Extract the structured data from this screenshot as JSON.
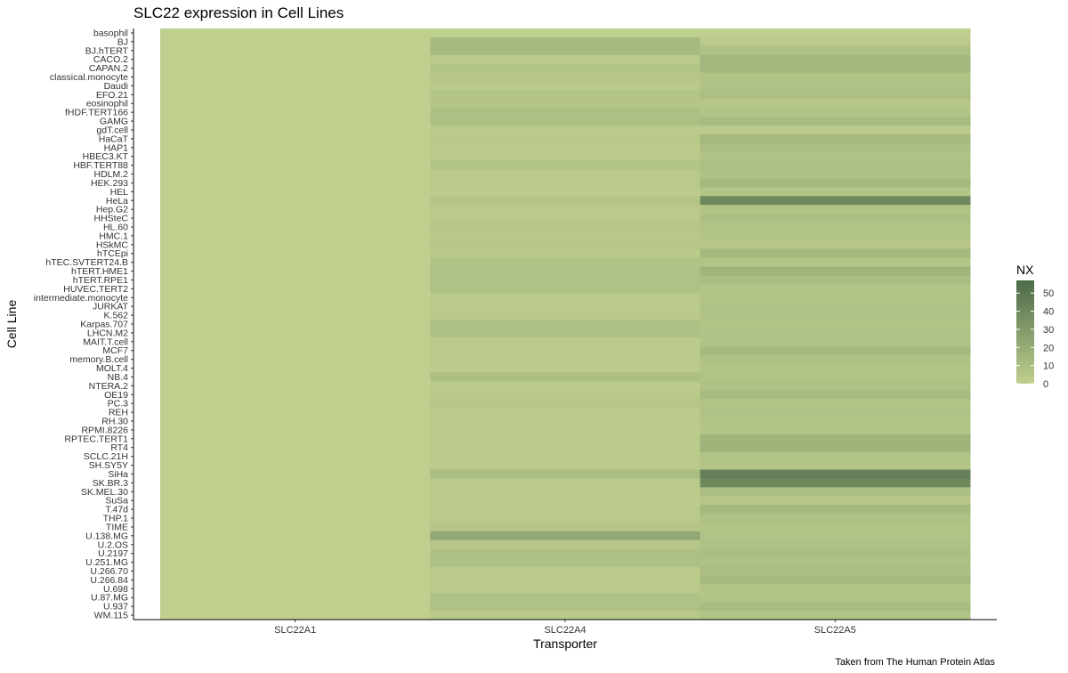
{
  "chart_data": {
    "type": "heatmap",
    "title": "SLC22 expression in Cell Lines",
    "xlabel": "Transporter",
    "ylabel": "Cell Line",
    "caption": "Taken from The Human Protein Atlas",
    "x": [
      "SLC22A1",
      "SLC22A4",
      "SLC22A5"
    ],
    "y": [
      "basophil",
      "BJ",
      "BJ.hTERT",
      "CACO.2",
      "CAPAN.2",
      "classical.monocyte",
      "Daudi",
      "EFO.21",
      "eosinophil",
      "fHDF.TERT166",
      "GAMG",
      "gdT.cell",
      "HaCaT",
      "HAP1",
      "HBEC3.KT",
      "HBF.TERT88",
      "HDLM.2",
      "HEK.293",
      "HEL",
      "HeLa",
      "Hep.G2",
      "HHSteC",
      "HL.60",
      "HMC.1",
      "HSkMC",
      "hTCEpi",
      "hTEC.SVTERT24.B",
      "hTERT.HME1",
      "hTERT.RPE1",
      "HUVEC.TERT2",
      "intermediate.monocyte",
      "JURKAT",
      "K.562",
      "Karpas.707",
      "LHCN.M2",
      "MAIT.T.cell",
      "MCF7",
      "memory.B.cell",
      "MOLT.4",
      "NB.4",
      "NTERA.2",
      "OE19",
      "PC.3",
      "REH",
      "RH.30",
      "RPMI.8226",
      "RPTEC.TERT1",
      "RT4",
      "SCLC.21H",
      "SH.SY5Y",
      "SiHa",
      "SK.BR.3",
      "SK.MEL.30",
      "SuSa",
      "T.47d",
      "THP.1",
      "TIME",
      "U.138.MG",
      "U.2.OS",
      "U.2197",
      "U.251.MG",
      "U.266.70",
      "U.266.84",
      "U.698",
      "U.87.MG",
      "U.937",
      "WM.115"
    ],
    "values": [
      [
        0,
        0,
        0
      ],
      [
        0,
        12,
        3
      ],
      [
        0,
        12,
        8
      ],
      [
        0,
        2,
        14
      ],
      [
        0,
        6,
        14
      ],
      [
        0,
        5,
        6
      ],
      [
        0,
        3,
        8
      ],
      [
        0,
        6,
        9
      ],
      [
        0,
        5,
        5
      ],
      [
        0,
        9,
        6
      ],
      [
        0,
        9,
        12
      ],
      [
        0,
        2,
        3
      ],
      [
        0,
        4,
        13
      ],
      [
        0,
        3,
        10
      ],
      [
        0,
        3,
        7
      ],
      [
        0,
        6,
        9
      ],
      [
        0,
        3,
        8
      ],
      [
        0,
        3,
        13
      ],
      [
        0,
        2,
        6
      ],
      [
        0,
        6,
        40
      ],
      [
        0,
        3,
        6
      ],
      [
        0,
        3,
        9
      ],
      [
        0,
        5,
        6
      ],
      [
        0,
        4,
        6
      ],
      [
        0,
        5,
        5
      ],
      [
        0,
        3,
        13
      ],
      [
        0,
        7,
        6
      ],
      [
        0,
        8,
        16
      ],
      [
        0,
        8,
        10
      ],
      [
        0,
        8,
        6
      ],
      [
        0,
        3,
        6
      ],
      [
        0,
        3,
        8
      ],
      [
        0,
        3,
        7
      ],
      [
        0,
        9,
        6
      ],
      [
        0,
        9,
        7
      ],
      [
        0,
        2,
        7
      ],
      [
        0,
        2,
        12
      ],
      [
        0,
        2,
        8
      ],
      [
        0,
        2,
        6
      ],
      [
        0,
        9,
        6
      ],
      [
        0,
        2,
        8
      ],
      [
        0,
        3,
        12
      ],
      [
        0,
        5,
        6
      ],
      [
        0,
        3,
        8
      ],
      [
        0,
        2,
        6
      ],
      [
        0,
        2,
        6
      ],
      [
        0,
        3,
        16
      ],
      [
        0,
        3,
        16
      ],
      [
        0,
        2,
        7
      ],
      [
        0,
        2,
        6
      ],
      [
        0,
        10,
        45
      ],
      [
        0,
        3,
        40
      ],
      [
        0,
        3,
        10
      ],
      [
        0,
        2,
        5
      ],
      [
        0,
        3,
        13
      ],
      [
        0,
        3,
        8
      ],
      [
        0,
        5,
        6
      ],
      [
        0,
        22,
        7
      ],
      [
        0,
        5,
        8
      ],
      [
        0,
        9,
        10
      ],
      [
        0,
        9,
        8
      ],
      [
        0,
        3,
        10
      ],
      [
        0,
        3,
        13
      ],
      [
        0,
        3,
        6
      ],
      [
        0,
        8,
        6
      ],
      [
        0,
        8,
        11
      ],
      [
        0,
        4,
        7
      ]
    ],
    "color_scale": {
      "low": "#bfcf8e",
      "high": "#4d6b4a",
      "min": 0,
      "max": 57
    },
    "legend": {
      "title": "NX",
      "ticks": [
        0,
        10,
        20,
        30,
        40,
        50
      ],
      "placement": "right"
    },
    "grid": false
  }
}
